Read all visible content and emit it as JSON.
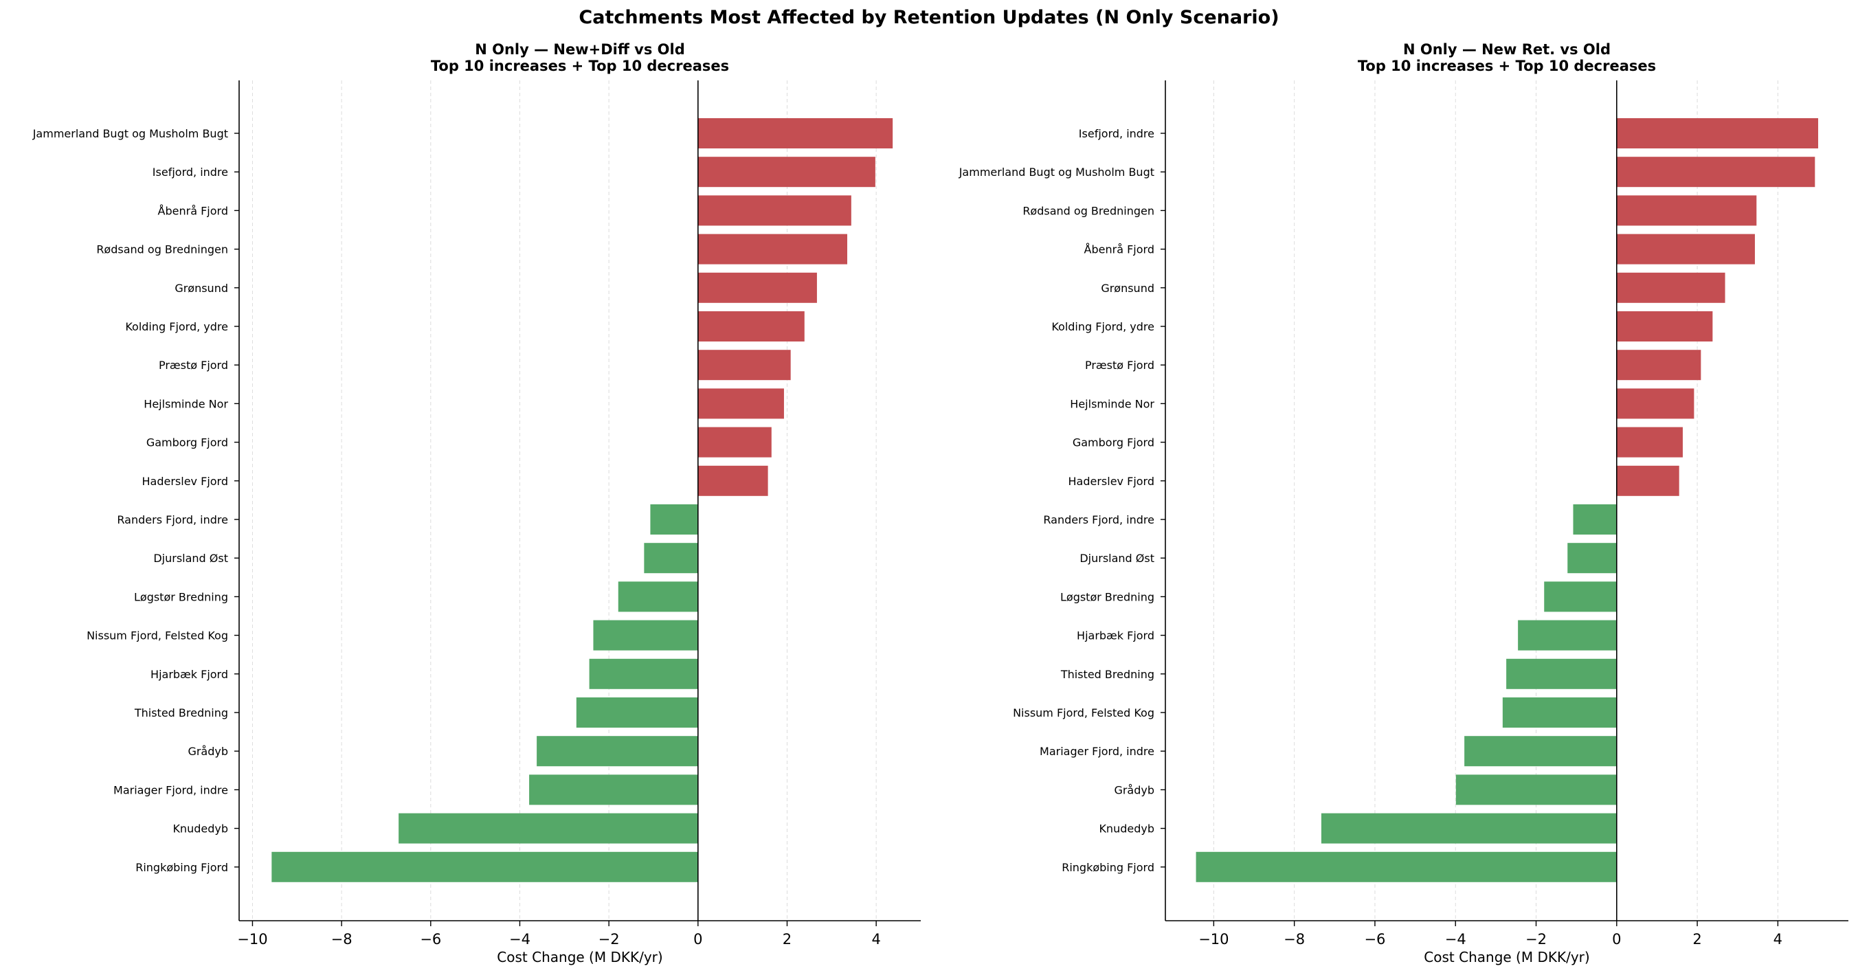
{
  "suptitle": "Catchments Most Affected by Retention Updates (N Only Scenario)",
  "colors": {
    "increase": "#c44e52",
    "decrease": "#55a868"
  },
  "chart_data": [
    {
      "type": "bar",
      "orientation": "horizontal",
      "title_lines": [
        "N Only — New+Diff vs Old",
        "Top 10 increases + Top 10 decreases"
      ],
      "xlabel": "Cost Change (M DKK/yr)",
      "xlim": [
        -10.3,
        5.0
      ],
      "xticks": [
        -10,
        -8,
        -6,
        -4,
        -2,
        0,
        2,
        4
      ],
      "xtick_labels": [
        "−10",
        "−8",
        "−6",
        "−4",
        "−2",
        "0",
        "2",
        "4"
      ],
      "grid": "x dashed",
      "categories": [
        "Jammerland Bugt og Musholm Bugt",
        "Isefjord, indre",
        "Åbenrå Fjord",
        "Rødsand og Bredningen",
        "Grønsund",
        "Kolding Fjord, ydre",
        "Præstø Fjord",
        "Hejlsminde Nor",
        "Gamborg Fjord",
        "Haderslev Fjord",
        "Randers Fjord, indre",
        "Djursland Øst",
        "Løgstør Bredning",
        "Nissum Fjord, Felsted Kog",
        "Hjarbæk Fjord",
        "Thisted Bredning",
        "Grådyb",
        "Mariager Fjord, indre",
        "Knudedyb",
        "Ringkøbing Fjord"
      ],
      "values": [
        4.37,
        3.98,
        3.44,
        3.35,
        2.67,
        2.39,
        2.08,
        1.93,
        1.65,
        1.57,
        -1.07,
        -1.21,
        -1.79,
        -2.35,
        -2.44,
        -2.73,
        -3.62,
        -3.79,
        -6.72,
        -9.57
      ]
    },
    {
      "type": "bar",
      "orientation": "horizontal",
      "title_lines": [
        "N Only — New Ret. vs Old",
        "Top 10 increases + Top 10 decreases"
      ],
      "xlabel": "Cost Change (M DKK/yr)",
      "xlim": [
        -11.2,
        5.75
      ],
      "xticks": [
        -10,
        -8,
        -6,
        -4,
        -2,
        0,
        2,
        4
      ],
      "xtick_labels": [
        "−10",
        "−8",
        "−6",
        "−4",
        "−2",
        "0",
        "2",
        "4"
      ],
      "grid": "x dashed",
      "categories": [
        "Isefjord, indre",
        "Jammerland Bugt og Musholm Bugt",
        "Rødsand og Bredningen",
        "Åbenrå Fjord",
        "Grønsund",
        "Kolding Fjord, ydre",
        "Præstø Fjord",
        "Hejlsminde Nor",
        "Gamborg Fjord",
        "Haderslev Fjord",
        "Randers Fjord, indre",
        "Djursland Øst",
        "Løgstør Bredning",
        "Hjarbæk Fjord",
        "Thisted Bredning",
        "Nissum Fjord, Felsted Kog",
        "Mariager Fjord, indre",
        "Grådyb",
        "Knudedyb",
        "Ringkøbing Fjord"
      ],
      "values": [
        5.0,
        4.92,
        3.47,
        3.43,
        2.69,
        2.38,
        2.09,
        1.92,
        1.64,
        1.55,
        -1.08,
        -1.22,
        -1.8,
        -2.45,
        -2.74,
        -2.83,
        -3.78,
        -3.99,
        -7.33,
        -10.44
      ]
    }
  ]
}
